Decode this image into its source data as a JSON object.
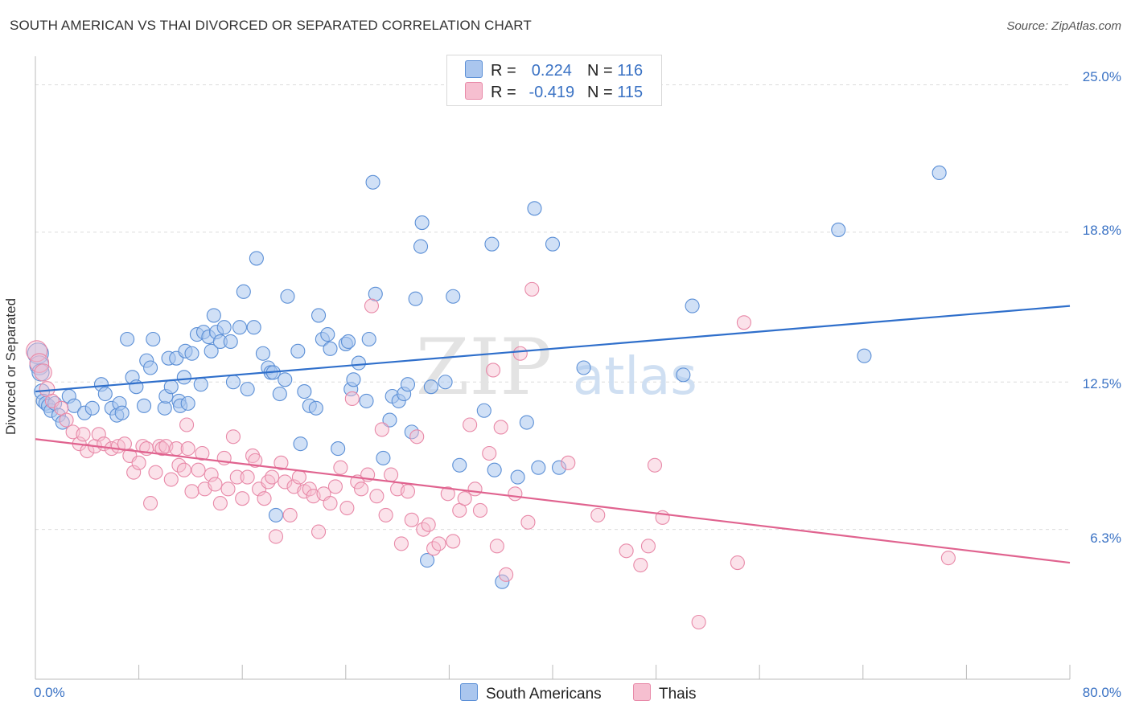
{
  "title": "SOUTH AMERICAN VS THAI DIVORCED OR SEPARATED CORRELATION CHART",
  "source": "Source: ZipAtlas.com",
  "watermark": {
    "zip": "ZIP",
    "atlas": "atlas"
  },
  "colors": {
    "blue": "#5b8fd6",
    "blue_fill": "#aac6ee",
    "blue_line": "#2f6fcb",
    "pink": "#e889a8",
    "pink_fill": "#f6bfd0",
    "pink_line": "#e0638f",
    "tick_text": "#3a72c4",
    "grid": "#dddddd"
  },
  "legend_top": {
    "rows": [
      {
        "r_label": "R =",
        "r_value": "0.224",
        "n_label": "N =",
        "n_value": "116"
      },
      {
        "r_label": "R =",
        "r_value": "-0.419",
        "n_label": "N =",
        "n_value": "115"
      }
    ]
  },
  "legend_bottom": {
    "series1": "South Americans",
    "series2": "Thais"
  },
  "chart_data": {
    "type": "scatter",
    "title": "SOUTH AMERICAN VS THAI DIVORCED OR SEPARATED CORRELATION CHART",
    "xlabel": "",
    "ylabel": "Divorced or Separated",
    "x_tick_labels": [
      "0.0%",
      "80.0%"
    ],
    "y_tick_labels": [
      "6.3%",
      "12.5%",
      "18.8%",
      "25.0%"
    ],
    "y_ticks": [
      6.3,
      12.5,
      18.8,
      25.0
    ],
    "xlim": [
      0,
      80
    ],
    "ylim": [
      0,
      26.2
    ],
    "grid": true,
    "legend_placement": "bottom",
    "series": [
      {
        "name": "South Americans",
        "color": "#5b8fd6",
        "r": 0.224,
        "n": 116,
        "trend": {
          "x": [
            0,
            80
          ],
          "y": [
            12.1,
            15.7
          ]
        },
        "points": [
          [
            0.2,
            13.7
          ],
          [
            0.3,
            13.2
          ],
          [
            0.4,
            12.9
          ],
          [
            0.5,
            12.1
          ],
          [
            0.6,
            11.7
          ],
          [
            0.8,
            11.6
          ],
          [
            1.0,
            11.5
          ],
          [
            1.2,
            11.3
          ],
          [
            1.5,
            11.6
          ],
          [
            1.8,
            11.1
          ],
          [
            2.1,
            10.8
          ],
          [
            2.6,
            11.9
          ],
          [
            3.0,
            11.5
          ],
          [
            3.8,
            11.2
          ],
          [
            4.4,
            11.4
          ],
          [
            5.1,
            12.4
          ],
          [
            5.4,
            12.0
          ],
          [
            5.9,
            11.4
          ],
          [
            6.3,
            11.1
          ],
          [
            6.5,
            11.6
          ],
          [
            6.7,
            11.2
          ],
          [
            7.1,
            14.3
          ],
          [
            7.5,
            12.7
          ],
          [
            7.8,
            12.3
          ],
          [
            8.4,
            11.5
          ],
          [
            8.6,
            13.4
          ],
          [
            8.9,
            13.1
          ],
          [
            9.1,
            14.3
          ],
          [
            10.0,
            11.4
          ],
          [
            10.1,
            11.9
          ],
          [
            10.3,
            13.5
          ],
          [
            10.5,
            12.3
          ],
          [
            10.9,
            13.5
          ],
          [
            11.1,
            11.7
          ],
          [
            11.2,
            11.5
          ],
          [
            11.5,
            12.7
          ],
          [
            11.6,
            13.8
          ],
          [
            11.8,
            11.6
          ],
          [
            12.1,
            13.7
          ],
          [
            12.5,
            14.5
          ],
          [
            12.8,
            12.4
          ],
          [
            13.0,
            14.6
          ],
          [
            13.4,
            14.4
          ],
          [
            13.6,
            13.8
          ],
          [
            13.8,
            15.3
          ],
          [
            14.0,
            14.6
          ],
          [
            14.3,
            14.2
          ],
          [
            14.6,
            14.8
          ],
          [
            15.1,
            14.2
          ],
          [
            15.3,
            12.5
          ],
          [
            15.8,
            14.8
          ],
          [
            16.1,
            16.3
          ],
          [
            16.4,
            12.2
          ],
          [
            16.9,
            14.8
          ],
          [
            17.1,
            17.7
          ],
          [
            17.6,
            13.7
          ],
          [
            18.0,
            13.1
          ],
          [
            18.2,
            12.9
          ],
          [
            18.4,
            12.9
          ],
          [
            18.6,
            6.9
          ],
          [
            18.9,
            12.0
          ],
          [
            19.3,
            12.6
          ],
          [
            19.5,
            16.1
          ],
          [
            20.3,
            13.8
          ],
          [
            20.5,
            9.9
          ],
          [
            20.8,
            12.1
          ],
          [
            21.2,
            11.5
          ],
          [
            21.7,
            11.4
          ],
          [
            21.9,
            15.3
          ],
          [
            22.2,
            14.3
          ],
          [
            22.6,
            14.5
          ],
          [
            22.8,
            13.9
          ],
          [
            23.4,
            9.7
          ],
          [
            24.0,
            14.1
          ],
          [
            24.2,
            14.2
          ],
          [
            24.4,
            12.2
          ],
          [
            24.6,
            12.6
          ],
          [
            25.0,
            13.3
          ],
          [
            25.6,
            11.7
          ],
          [
            25.8,
            14.3
          ],
          [
            26.1,
            20.9
          ],
          [
            26.3,
            16.2
          ],
          [
            26.9,
            9.3
          ],
          [
            27.4,
            10.9
          ],
          [
            27.6,
            11.9
          ],
          [
            28.1,
            11.7
          ],
          [
            28.5,
            12.0
          ],
          [
            28.8,
            12.4
          ],
          [
            29.1,
            10.4
          ],
          [
            29.4,
            16.0
          ],
          [
            29.8,
            18.2
          ],
          [
            29.9,
            19.2
          ],
          [
            30.3,
            5.0
          ],
          [
            30.6,
            12.3
          ],
          [
            31.7,
            12.5
          ],
          [
            32.3,
            16.1
          ],
          [
            32.8,
            9.0
          ],
          [
            34.7,
            11.3
          ],
          [
            35.3,
            18.3
          ],
          [
            35.5,
            8.8
          ],
          [
            36.1,
            4.1
          ],
          [
            37.3,
            8.5
          ],
          [
            38.0,
            10.8
          ],
          [
            38.6,
            19.8
          ],
          [
            38.9,
            8.9
          ],
          [
            40.0,
            18.3
          ],
          [
            40.5,
            8.9
          ],
          [
            42.4,
            13.1
          ],
          [
            50.1,
            12.8
          ],
          [
            50.8,
            15.7
          ],
          [
            62.1,
            18.9
          ],
          [
            64.1,
            13.6
          ],
          [
            69.9,
            21.3
          ]
        ]
      },
      {
        "name": "Thais",
        "color": "#e889a8",
        "r": -0.419,
        "n": 115,
        "trend": {
          "x": [
            0,
            80
          ],
          "y": [
            10.1,
            4.9
          ]
        },
        "points": [
          [
            0.1,
            13.8
          ],
          [
            0.3,
            13.3
          ],
          [
            0.6,
            12.9
          ],
          [
            0.9,
            12.2
          ],
          [
            1.3,
            11.7
          ],
          [
            2.0,
            11.4
          ],
          [
            2.4,
            10.9
          ],
          [
            2.9,
            10.4
          ],
          [
            3.4,
            9.9
          ],
          [
            3.7,
            10.3
          ],
          [
            4.0,
            9.6
          ],
          [
            4.6,
            9.8
          ],
          [
            4.9,
            10.3
          ],
          [
            5.3,
            9.9
          ],
          [
            5.9,
            9.7
          ],
          [
            6.4,
            9.8
          ],
          [
            6.9,
            9.9
          ],
          [
            7.3,
            9.4
          ],
          [
            7.6,
            8.7
          ],
          [
            8.0,
            9.1
          ],
          [
            8.3,
            9.8
          ],
          [
            8.6,
            9.7
          ],
          [
            8.9,
            7.4
          ],
          [
            9.3,
            8.7
          ],
          [
            9.6,
            9.8
          ],
          [
            9.8,
            9.7
          ],
          [
            10.1,
            9.8
          ],
          [
            10.5,
            8.4
          ],
          [
            10.9,
            9.7
          ],
          [
            11.1,
            9.0
          ],
          [
            11.5,
            8.8
          ],
          [
            11.7,
            10.7
          ],
          [
            11.8,
            9.7
          ],
          [
            12.1,
            7.9
          ],
          [
            12.6,
            8.8
          ],
          [
            12.9,
            9.5
          ],
          [
            13.1,
            8.0
          ],
          [
            13.6,
            8.6
          ],
          [
            13.9,
            8.2
          ],
          [
            14.3,
            7.4
          ],
          [
            14.6,
            9.3
          ],
          [
            14.9,
            8.0
          ],
          [
            15.3,
            10.2
          ],
          [
            15.6,
            8.5
          ],
          [
            16.0,
            7.6
          ],
          [
            16.4,
            8.5
          ],
          [
            16.8,
            9.4
          ],
          [
            17.0,
            9.2
          ],
          [
            17.3,
            8.0
          ],
          [
            17.7,
            7.6
          ],
          [
            18.0,
            8.3
          ],
          [
            18.3,
            8.5
          ],
          [
            18.6,
            6.0
          ],
          [
            19.0,
            9.1
          ],
          [
            19.3,
            8.3
          ],
          [
            19.7,
            6.9
          ],
          [
            20.0,
            8.1
          ],
          [
            20.4,
            8.5
          ],
          [
            20.8,
            7.9
          ],
          [
            21.2,
            8.0
          ],
          [
            21.5,
            7.7
          ],
          [
            21.9,
            6.2
          ],
          [
            22.3,
            7.8
          ],
          [
            22.8,
            7.4
          ],
          [
            23.2,
            8.1
          ],
          [
            23.6,
            8.9
          ],
          [
            24.1,
            7.2
          ],
          [
            24.5,
            11.8
          ],
          [
            24.9,
            8.3
          ],
          [
            25.2,
            8.0
          ],
          [
            25.7,
            8.6
          ],
          [
            26.0,
            15.7
          ],
          [
            26.4,
            7.7
          ],
          [
            26.8,
            10.5
          ],
          [
            27.1,
            6.9
          ],
          [
            27.5,
            8.6
          ],
          [
            28.0,
            8.0
          ],
          [
            28.3,
            5.7
          ],
          [
            28.8,
            7.9
          ],
          [
            29.1,
            6.7
          ],
          [
            29.5,
            10.2
          ],
          [
            30.0,
            6.3
          ],
          [
            30.4,
            6.5
          ],
          [
            30.8,
            5.5
          ],
          [
            31.2,
            5.7
          ],
          [
            31.9,
            7.8
          ],
          [
            32.3,
            5.8
          ],
          [
            32.8,
            7.1
          ],
          [
            33.2,
            7.6
          ],
          [
            33.6,
            10.7
          ],
          [
            34.0,
            8.0
          ],
          [
            34.4,
            7.1
          ],
          [
            35.1,
            9.5
          ],
          [
            35.4,
            13.0
          ],
          [
            35.7,
            5.6
          ],
          [
            36.0,
            10.6
          ],
          [
            36.4,
            4.4
          ],
          [
            37.1,
            7.8
          ],
          [
            37.5,
            13.7
          ],
          [
            38.1,
            6.6
          ],
          [
            38.4,
            16.4
          ],
          [
            41.2,
            9.1
          ],
          [
            43.5,
            6.9
          ],
          [
            45.7,
            5.4
          ],
          [
            46.8,
            4.8
          ],
          [
            47.4,
            5.6
          ],
          [
            47.9,
            9.0
          ],
          [
            48.5,
            6.8
          ],
          [
            51.3,
            2.4
          ],
          [
            54.3,
            4.9
          ],
          [
            54.8,
            15.0
          ],
          [
            70.6,
            5.1
          ]
        ]
      }
    ]
  }
}
